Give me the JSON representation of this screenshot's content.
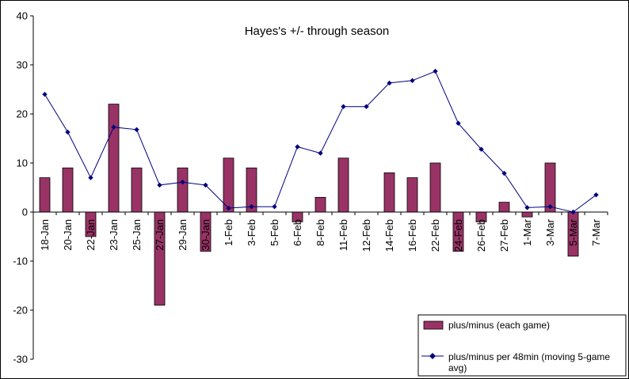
{
  "chart_data": {
    "type": "bar+line",
    "title": "Hayes's +/- through season",
    "xlabel": "",
    "ylabel": "",
    "ylim": [
      -30,
      40
    ],
    "yticks": [
      -30,
      -20,
      -10,
      0,
      10,
      20,
      30,
      40
    ],
    "grid": false,
    "legend_position": "bottom-right",
    "categories": [
      "18-Jan",
      "20-Jan",
      "22-Jan",
      "23-Jan",
      "25-Jan",
      "27-Jan",
      "29-Jan",
      "30-Jan",
      "1-Feb",
      "3-Feb",
      "5-Feb",
      "6-Feb",
      "8-Feb",
      "11-Feb",
      "12-Feb",
      "14-Feb",
      "16-Feb",
      "22-Feb",
      "24-Feb",
      "26-Feb",
      "27-Feb",
      "1-Mar",
      "3-Mar",
      "5-Mar",
      "7-Mar"
    ],
    "series": [
      {
        "name": "plus/minus (each game)",
        "kind": "bar",
        "color": "#993366",
        "values": [
          7,
          9,
          -5,
          22,
          9,
          -19,
          9,
          -8,
          11,
          9,
          0,
          -2,
          3,
          11,
          0,
          8,
          7,
          10,
          -8,
          -2,
          2,
          -1,
          10,
          -9,
          0
        ]
      },
      {
        "name": "plus/minus per 48min (moving 5-game avg)",
        "kind": "line",
        "color": "#000080",
        "values": [
          24,
          16.3,
          7,
          17.3,
          16.8,
          5.5,
          6.1,
          5.5,
          0.8,
          1.1,
          1.1,
          13.3,
          12,
          21.5,
          21.5,
          26.3,
          26.8,
          28.7,
          18.1,
          12.8,
          7.9,
          0.9,
          1.1,
          0,
          3.5
        ]
      }
    ]
  }
}
